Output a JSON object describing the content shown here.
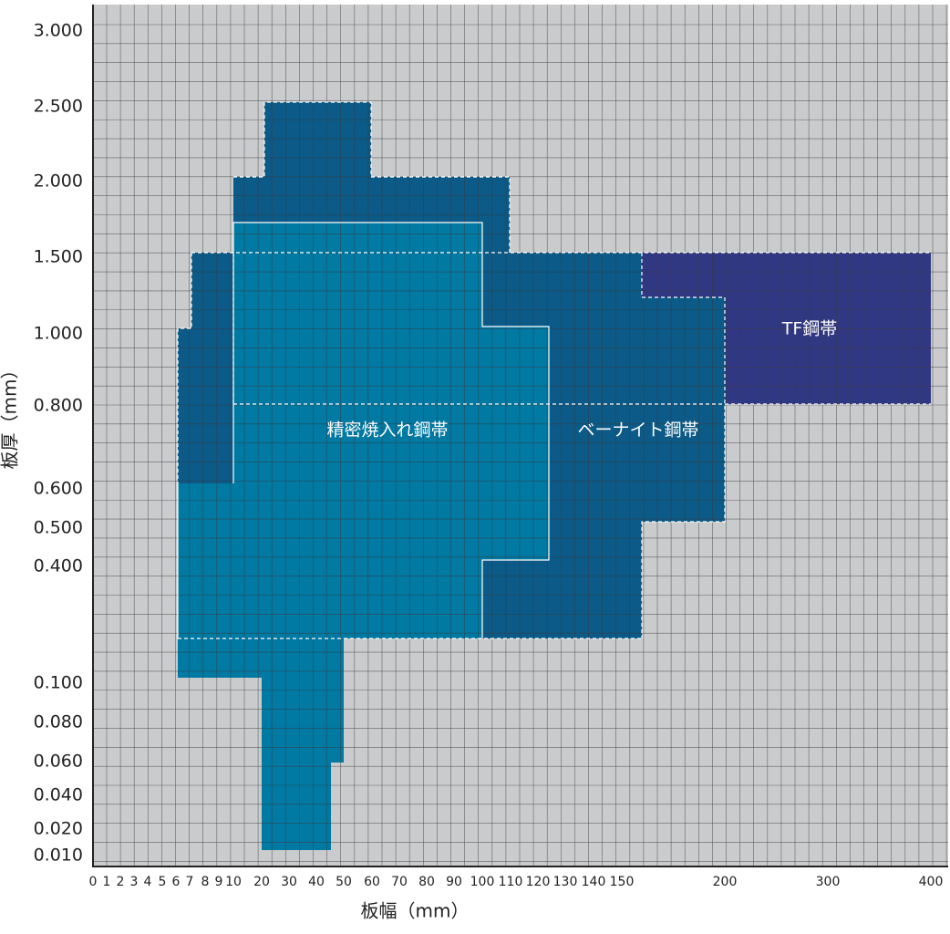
{
  "axes": {
    "x_title": "板幅（mm）",
    "y_title": "板厚（mm）",
    "x_ticks": [
      "0",
      "1",
      "2",
      "3",
      "4",
      "5",
      "6",
      "7",
      "8",
      "9",
      "10",
      "20",
      "30",
      "40",
      "50",
      "60",
      "70",
      "80",
      "90",
      "100",
      "110",
      "120",
      "130",
      "140",
      "150",
      "200",
      "300",
      "400"
    ],
    "y_ticks": [
      "3.000",
      "2.500",
      "2.000",
      "1.500",
      "1.000",
      "0.800",
      "0.600",
      "0.500",
      "0.400",
      "0.100",
      "0.080",
      "0.060",
      "0.040",
      "0.020",
      "0.010"
    ]
  },
  "regions": {
    "precision": "精密焼入れ鋼帯",
    "bainite": "ベーナイト鋼帯",
    "tf": "TF鋼帯"
  }
}
